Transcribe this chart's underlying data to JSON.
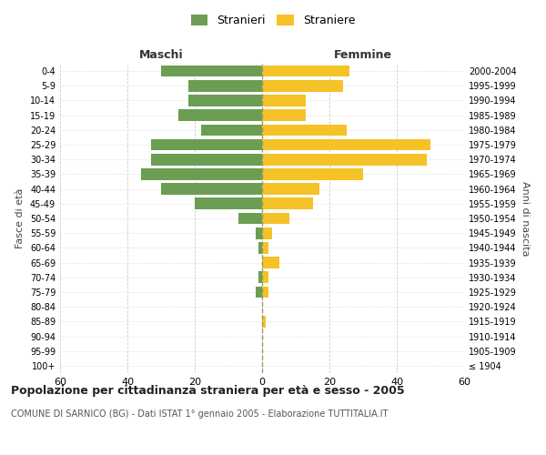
{
  "age_groups": [
    "100+",
    "95-99",
    "90-94",
    "85-89",
    "80-84",
    "75-79",
    "70-74",
    "65-69",
    "60-64",
    "55-59",
    "50-54",
    "45-49",
    "40-44",
    "35-39",
    "30-34",
    "25-29",
    "20-24",
    "15-19",
    "10-14",
    "5-9",
    "0-4"
  ],
  "birth_years": [
    "≤ 1904",
    "1905-1909",
    "1910-1914",
    "1915-1919",
    "1920-1924",
    "1925-1929",
    "1930-1934",
    "1935-1939",
    "1940-1944",
    "1945-1949",
    "1950-1954",
    "1955-1959",
    "1960-1964",
    "1965-1969",
    "1970-1974",
    "1975-1979",
    "1980-1984",
    "1985-1989",
    "1990-1994",
    "1995-1999",
    "2000-2004"
  ],
  "males": [
    0,
    0,
    0,
    0,
    0,
    2,
    1,
    0,
    1,
    2,
    7,
    20,
    30,
    36,
    33,
    33,
    18,
    25,
    22,
    22,
    30
  ],
  "females": [
    0,
    0,
    0,
    1,
    0,
    2,
    2,
    5,
    2,
    3,
    8,
    15,
    17,
    30,
    49,
    50,
    25,
    13,
    13,
    24,
    26
  ],
  "male_color": "#6b9e52",
  "female_color": "#f5c228",
  "background_color": "#ffffff",
  "grid_color": "#cccccc",
  "center_line_color": "#999966",
  "title": "Popolazione per cittadinanza straniera per età e sesso - 2005",
  "subtitle": "COMUNE DI SARNICO (BG) - Dati ISTAT 1° gennaio 2005 - Elaborazione TUTTITALIA.IT",
  "xlabel_left": "Maschi",
  "xlabel_right": "Femmine",
  "ylabel_left": "Fasce di età",
  "ylabel_right": "Anni di nascita",
  "xlim": 60,
  "legend_male": "Stranieri",
  "legend_female": "Straniere"
}
